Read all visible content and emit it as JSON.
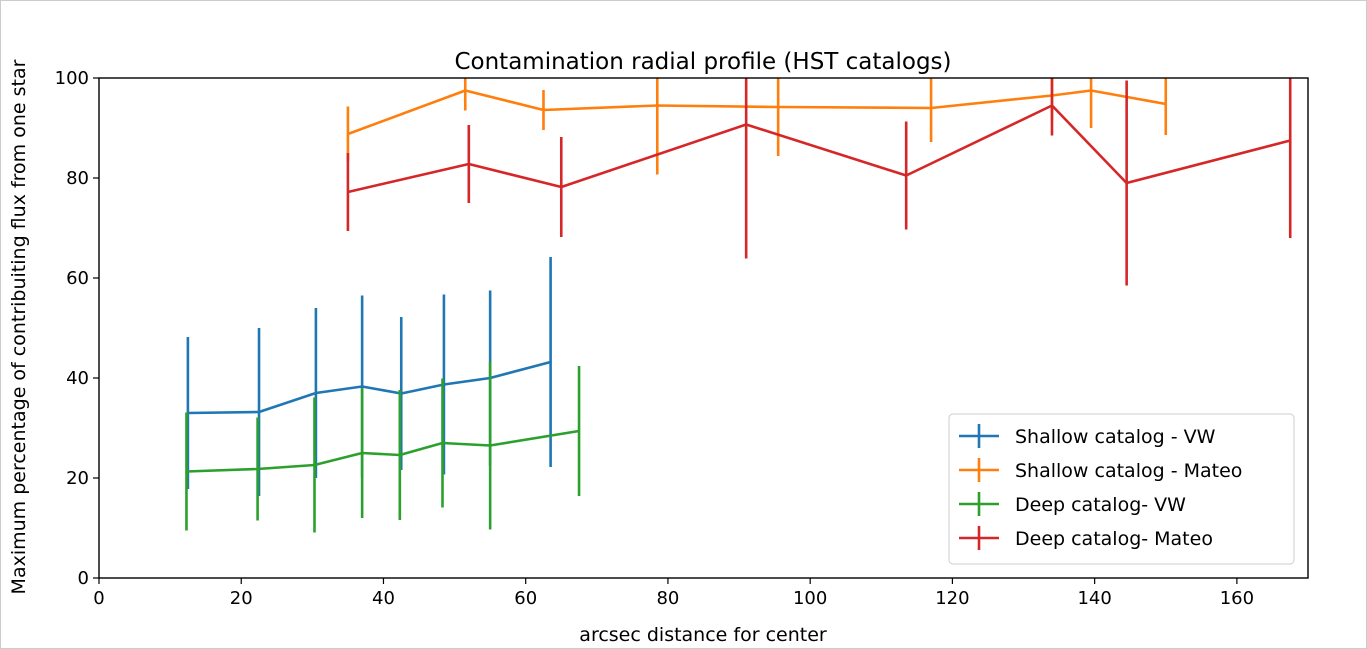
{
  "chart_data": {
    "type": "line",
    "title": "Contamination radial profile (HST catalogs)",
    "xlabel": "arcsec distance for center",
    "ylabel": "Maximum percentage of contribuiting flux from one star",
    "xlim": [
      0,
      170
    ],
    "ylim": [
      0,
      100
    ],
    "xticks": [
      0,
      20,
      40,
      60,
      80,
      100,
      120,
      140,
      160
    ],
    "yticks": [
      0,
      20,
      40,
      60,
      80,
      100
    ],
    "grid": false,
    "legend_position": "lower-right",
    "series": [
      {
        "name": "Shallow catalog - VW",
        "color": "#1f77b4",
        "x": [
          12.5,
          22.5,
          30.5,
          37,
          42.5,
          48.5,
          55,
          63.5
        ],
        "y": [
          33,
          33.2,
          37,
          38.3,
          36.9,
          38.7,
          40,
          43.2
        ],
        "err": [
          15.2,
          16.8,
          17,
          18.2,
          15.3,
          18,
          17.5,
          21
        ]
      },
      {
        "name": "Shallow catalog - Mateo",
        "color": "#ff7f0e",
        "x": [
          35,
          51.5,
          62.5,
          78.5,
          95.5,
          117,
          134,
          139.5,
          150
        ],
        "y": [
          88.8,
          97.5,
          93.6,
          94.5,
          94.2,
          94,
          96.5,
          97.5,
          94.8
        ],
        "err": [
          5.5,
          4,
          4,
          13.8,
          9.8,
          6.8,
          5,
          7.5,
          6.2
        ]
      },
      {
        "name": "Deep catalog- VW",
        "color": "#2ca02c",
        "x": [
          12.3,
          22.3,
          30.3,
          37,
          42.3,
          48.3,
          55,
          67.5
        ],
        "y": [
          21.3,
          21.8,
          22.6,
          25,
          24.6,
          27,
          26.5,
          29.4
        ],
        "err": [
          11.8,
          10.3,
          13.5,
          13,
          13,
          12.9,
          16.8,
          13
        ]
      },
      {
        "name": "Deep catalog- Mateo",
        "color": "#d62728",
        "x": [
          35,
          52,
          65,
          91,
          113.5,
          134,
          144.5,
          167.5
        ],
        "y": [
          77.2,
          82.8,
          78.2,
          90.7,
          80.5,
          94.5,
          79,
          87.5
        ],
        "err": [
          7.8,
          7.8,
          10,
          26.8,
          10.8,
          6,
          20.5,
          19.5
        ]
      }
    ]
  }
}
